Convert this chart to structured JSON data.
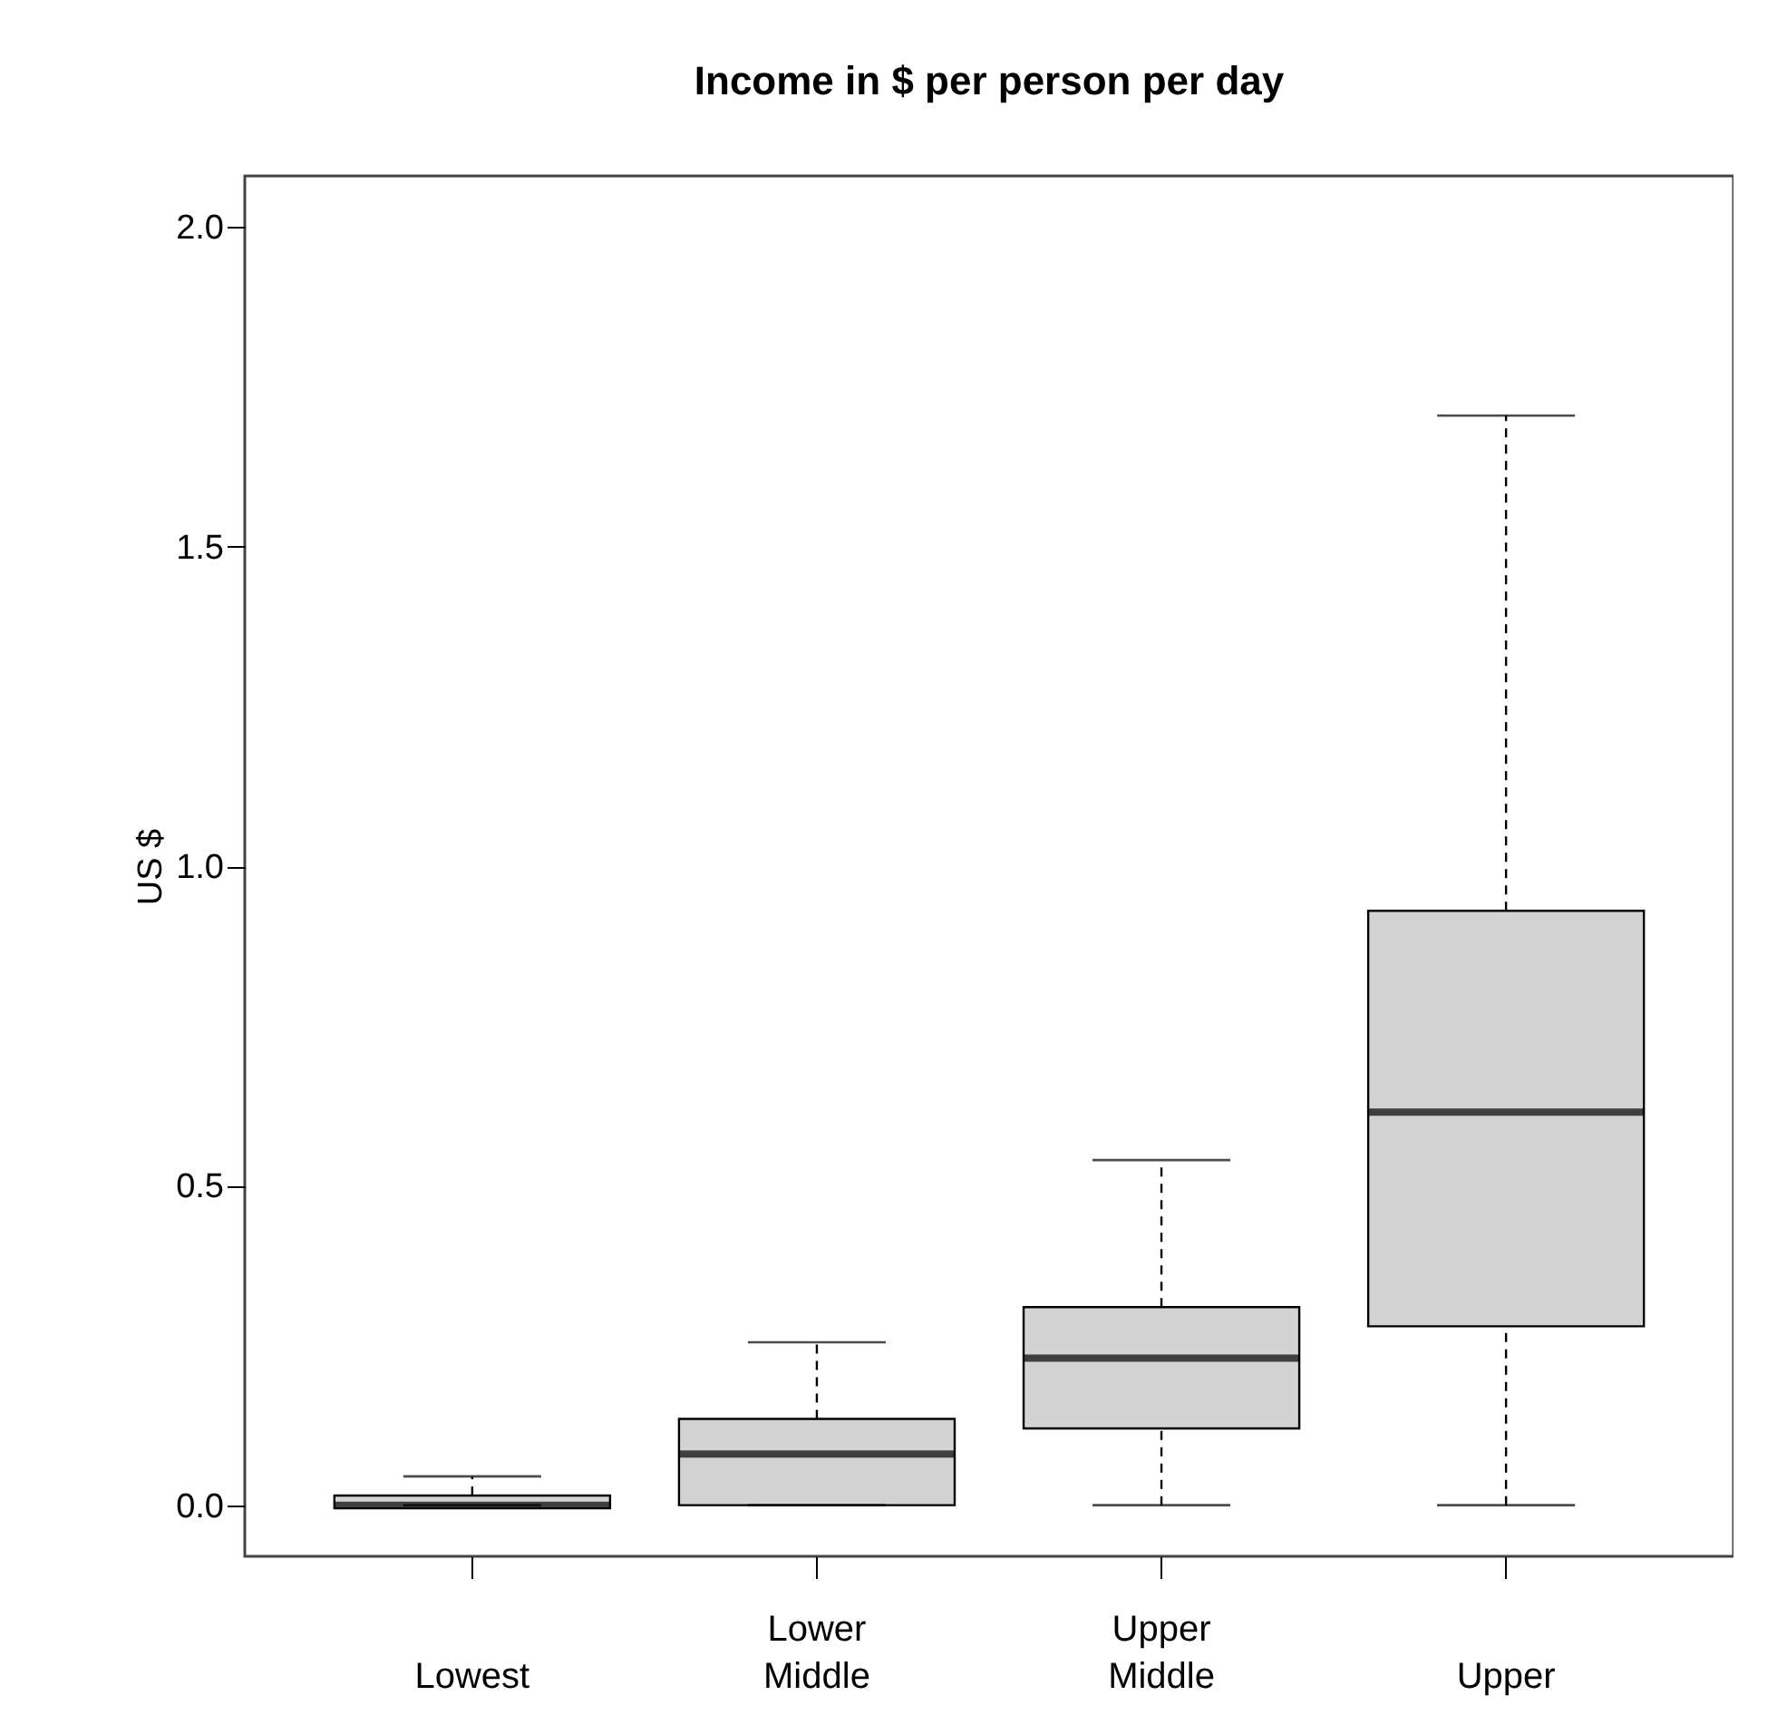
{
  "chart_data": {
    "type": "box",
    "title": "Income in $ per person per day",
    "ylabel": "US $",
    "categories": [
      "Lowest",
      "Lower Middle",
      "Upper Middle",
      "Upper"
    ],
    "series": [
      {
        "color": "#d3d3d3",
        "boxes": [
          {
            "low": 0,
            "q1": -0.005,
            "median": 0,
            "q3": 0.015,
            "high": 0.045
          },
          {
            "low": 0,
            "q1": 0,
            "median": 0.08,
            "q3": 0.135,
            "high": 0.255
          },
          {
            "low": 0,
            "q1": 0.12,
            "median": 0.23,
            "q3": 0.31,
            "high": 0.54
          },
          {
            "low": 0,
            "q1": 0.28,
            "median": 0.615,
            "q3": 0.93,
            "high": 1.705
          }
        ]
      }
    ],
    "ylim": [
      -0.08,
      2.08
    ],
    "yticks": [
      {
        "value": 0,
        "label": "0.0"
      },
      {
        "value": 0.5,
        "label": "0.5"
      },
      {
        "value": 1,
        "label": "1.0"
      },
      {
        "value": 1.5,
        "label": "1.5"
      },
      {
        "value": 2,
        "label": "2.0"
      }
    ],
    "grid": false
  }
}
